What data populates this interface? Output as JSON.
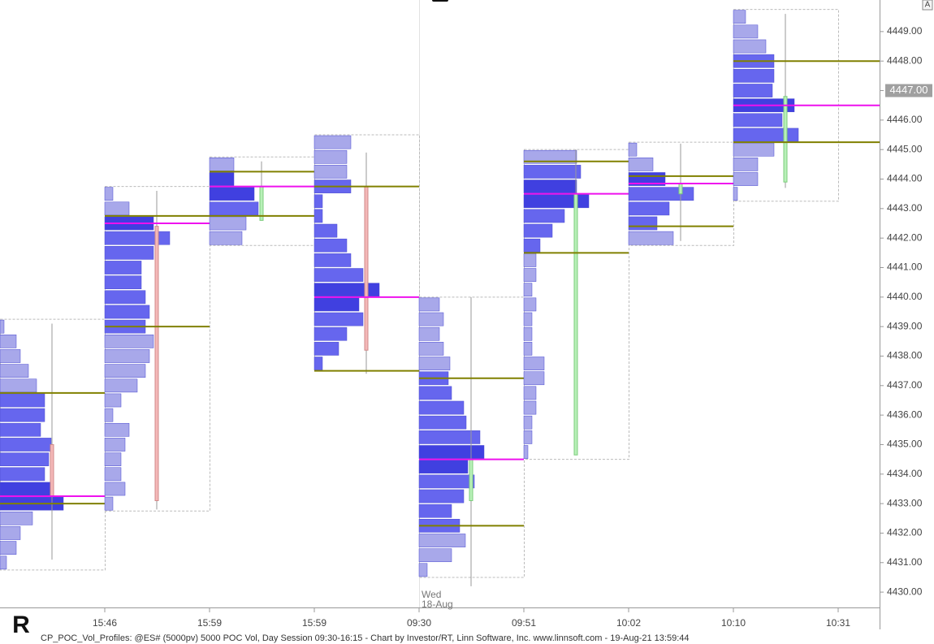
{
  "chart_data": {
    "type": "volume-profile",
    "ylim": [
      4429.48,
      4450.07
    ],
    "yticks": [
      {
        "value": 4430,
        "label": "4430.00"
      },
      {
        "value": 4431,
        "label": "4431.00"
      },
      {
        "value": 4432,
        "label": "4432.00"
      },
      {
        "value": 4433,
        "label": "4433.00"
      },
      {
        "value": 4434,
        "label": "4434.00"
      },
      {
        "value": 4435,
        "label": "4435.00"
      },
      {
        "value": 4436,
        "label": "4436.00"
      },
      {
        "value": 4437,
        "label": "4437.00"
      },
      {
        "value": 4438,
        "label": "4438.00"
      },
      {
        "value": 4439,
        "label": "4439.00"
      },
      {
        "value": 4440,
        "label": "4440.00"
      },
      {
        "value": 4441,
        "label": "4441.00"
      },
      {
        "value": 4442,
        "label": "4442.00"
      },
      {
        "value": 4443,
        "label": "4443.00"
      },
      {
        "value": 4444,
        "label": "4444.00"
      },
      {
        "value": 4445,
        "label": "4445.00"
      },
      {
        "value": 4446,
        "label": "4446.00"
      },
      {
        "value": 4447,
        "label": "4447.00"
      },
      {
        "value": 4448,
        "label": "4448.00"
      },
      {
        "value": 4449,
        "label": "4449.00"
      }
    ],
    "time_labels": [
      "15:46",
      "15:59",
      "15:59",
      "09:30",
      "09:51",
      "10:02",
      "10:10",
      "10:31"
    ],
    "day_marker": [
      "Wed",
      "18-Aug"
    ],
    "last": {
      "value": 4447,
      "label": "4447.00"
    },
    "scale_button": "A",
    "footer": "CP_POC_Vol_Profiles: @ES# (5000pv) 5000 POC Vol, Day Session 09:30-16:15 - Chart by Investor/RT, Linn Software, Inc. www.linnsoft.com - 19-Aug-21 13:59:44",
    "profiles": [
      {
        "high": 4439,
        "low": 4431,
        "poc": 4433.25,
        "vah": 4436.75,
        "val": 4433,
        "open": 4435,
        "close": 4433.25,
        "bar_high": 4439.1,
        "bar_low": 4431.1,
        "volumes": [
          5,
          20,
          25,
          35,
          45,
          55,
          55,
          50,
          63,
          60,
          55,
          62,
          78,
          40,
          25,
          20,
          8
        ]
      },
      {
        "high": 4443.5,
        "low": 4433,
        "poc": 4442.5,
        "vah": 4442.75,
        "val": 4439,
        "open": 4442.4,
        "close": 4433.1,
        "bar_high": 4443.6,
        "bar_low": 4432.8,
        "volumes": [
          10,
          30,
          60,
          80,
          60,
          45,
          45,
          50,
          55,
          50,
          60,
          55,
          50,
          40,
          20,
          10,
          30,
          25,
          20,
          20,
          25,
          10
        ]
      },
      {
        "high": 4444.5,
        "low": 4442,
        "poc": 4443.75,
        "vah": 4444.25,
        "val": 4442.75,
        "open": 4442.6,
        "close": 4443.75,
        "bar_high": 4444.6,
        "bar_low": 4442.6,
        "volumes": [
          30,
          30,
          55,
          60,
          45,
          40
        ]
      },
      {
        "high": 4445.25,
        "low": 4437.75,
        "poc": 4440,
        "vah": 4443.75,
        "val": 4437.5,
        "open": 4443.75,
        "close": 4438.2,
        "bar_high": 4444.9,
        "bar_low": 4437.4,
        "volumes": [
          45,
          40,
          40,
          45,
          10,
          10,
          28,
          40,
          45,
          60,
          80,
          55,
          60,
          40,
          30,
          10
        ]
      },
      {
        "high": 4439.75,
        "low": 4430.75,
        "poc": 4434.5,
        "vah": 4437.25,
        "val": 4432.25,
        "open": 4433.1,
        "close": 4434.5,
        "bar_high": 4440,
        "bar_low": 4430.2,
        "volumes": [
          25,
          30,
          25,
          30,
          38,
          36,
          40,
          55,
          58,
          75,
          80,
          60,
          68,
          55,
          40,
          50,
          57,
          40,
          10
        ]
      },
      {
        "high": 4444.75,
        "low": 4434.75,
        "poc": 4443.5,
        "vah": 4444.6,
        "val": 4441.5,
        "open": 4434.65,
        "close": 4443.5,
        "bar_high": 4445,
        "bar_low": 4434.65,
        "volumes": [
          65,
          70,
          65,
          80,
          50,
          35,
          20,
          15,
          15,
          10,
          15,
          10,
          10,
          10,
          25,
          25,
          15,
          15,
          10,
          10,
          5
        ]
      },
      {
        "high": 4445,
        "low": 4442,
        "poc": 4443.85,
        "vah": 4444.1,
        "val": 4442.4,
        "open": 4443.5,
        "close": 4443.85,
        "bar_high": 4445.2,
        "bar_low": 4441.9,
        "volumes": [
          10,
          30,
          45,
          80,
          50,
          35,
          55
        ]
      },
      {
        "high": 4449.5,
        "low": 4443.5,
        "poc": 4446.5,
        "vah": 4448,
        "val": 4445.25,
        "open": 4443.9,
        "close": 4446.8,
        "bar_high": 4449.6,
        "bar_low": 4443.7,
        "volumes": [
          15,
          30,
          40,
          50,
          50,
          48,
          75,
          60,
          80,
          50,
          30,
          30,
          5
        ]
      }
    ]
  }
}
